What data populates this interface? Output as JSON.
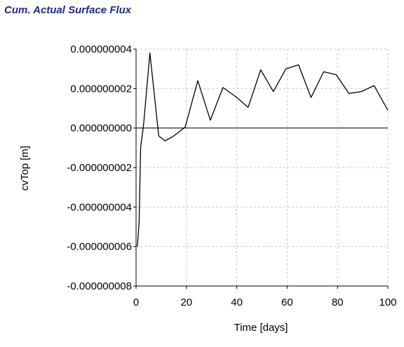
{
  "chart_data": {
    "type": "line",
    "title": "Cum. Actual Surface Flux",
    "xlabel": "Time [days]",
    "ylabel": "cvTop [m]",
    "xlim": [
      0,
      100
    ],
    "ylim": [
      -8e-09,
      4e-09
    ],
    "x_ticks": [
      0,
      20,
      40,
      60,
      80,
      100
    ],
    "x_tick_labels": [
      "0",
      "20",
      "40",
      "60",
      "80",
      "100"
    ],
    "y_ticks": [
      4e-09,
      2e-09,
      0,
      -2e-09,
      -4e-09,
      -6e-09,
      -8e-09
    ],
    "y_tick_labels": [
      "0.000000004",
      "0.000000002",
      "0.000000000",
      "-0.000000002",
      "-0.000000004",
      "-0.000000006",
      "-0.000000008"
    ],
    "grid": true,
    "line_color": "#000000",
    "title_color": "#1f2a7a",
    "series": [
      {
        "x": [
          0.5,
          1.2,
          1.8,
          3.0,
          5.5,
          9.0,
          11.5,
          15.0,
          19.5,
          24.5,
          29.5,
          34.5,
          39.5,
          44.5,
          49.5,
          54.5,
          59.5,
          64.5,
          69.5,
          74.5,
          79.5,
          84.5,
          89.5,
          94.5,
          100.0
        ],
        "y": [
          -6e-09,
          -4.8e-09,
          -1e-09,
          2e-10,
          3.8e-09,
          -4e-10,
          -6.5e-10,
          -4e-10,
          5e-11,
          2.4e-09,
          4e-10,
          2.05e-09,
          1.6e-09,
          1.05e-09,
          2.95e-09,
          1.85e-09,
          3e-09,
          3.2e-09,
          1.55e-09,
          2.85e-09,
          2.7e-09,
          1.75e-09,
          1.85e-09,
          2.15e-09,
          9e-10
        ]
      }
    ]
  }
}
